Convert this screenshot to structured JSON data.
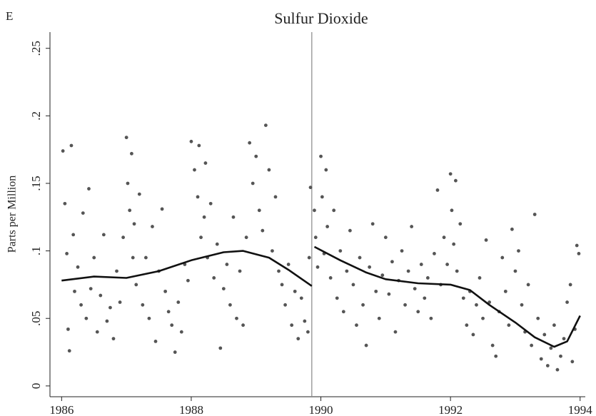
{
  "chart_data": {
    "type": "scatter",
    "panel_label": "E",
    "title": "Sulfur Dioxide",
    "y_label": "Parts per Million",
    "xlim": [
      1985.82,
      1994.08
    ],
    "xticks": [
      1986,
      1988,
      1990,
      1992,
      1994
    ],
    "ylim": [
      -0.008,
      0.262
    ],
    "yticks": [
      0,
      {
        "value": 0.05,
        "label": ".05"
      },
      {
        "value": 0.1,
        "label": ".1"
      },
      {
        "value": 0.15,
        "label": ".15"
      },
      {
        "value": 0.2,
        "label": ".2"
      },
      {
        "value": 0.25,
        "label": ".25"
      }
    ],
    "vline": 1989.86,
    "color": "#555555",
    "fit_color": "#111111",
    "x": [
      1986.02,
      1986.05,
      1986.08,
      1986.1,
      1986.12,
      1986.15,
      1986.18,
      1986.2,
      1986.25,
      1986.3,
      1986.33,
      1986.38,
      1986.42,
      1986.45,
      1986.5,
      1986.55,
      1986.6,
      1986.65,
      1986.7,
      1986.75,
      1986.8,
      1986.85,
      1986.9,
      1986.95,
      1987.0,
      1987.02,
      1987.05,
      1987.08,
      1987.1,
      1987.12,
      1987.15,
      1987.2,
      1987.25,
      1987.3,
      1987.35,
      1987.4,
      1987.45,
      1987.5,
      1987.55,
      1987.6,
      1987.65,
      1987.7,
      1987.75,
      1987.8,
      1987.85,
      1987.9,
      1987.95,
      1988.0,
      1988.05,
      1988.1,
      1988.12,
      1988.15,
      1988.2,
      1988.22,
      1988.25,
      1988.3,
      1988.35,
      1988.4,
      1988.45,
      1988.5,
      1988.55,
      1988.6,
      1988.65,
      1988.7,
      1988.75,
      1988.8,
      1988.85,
      1988.9,
      1988.95,
      1989.0,
      1989.05,
      1989.1,
      1989.15,
      1989.2,
      1989.25,
      1989.3,
      1989.35,
      1989.4,
      1989.45,
      1989.5,
      1989.55,
      1989.6,
      1989.65,
      1989.7,
      1989.75,
      1989.8,
      1989.82,
      1989.84,
      1989.9,
      1989.92,
      1989.95,
      1990.0,
      1990.02,
      1990.05,
      1990.08,
      1990.1,
      1990.15,
      1990.2,
      1990.25,
      1990.3,
      1990.35,
      1990.4,
      1990.45,
      1990.5,
      1990.55,
      1990.6,
      1990.65,
      1990.7,
      1990.75,
      1990.8,
      1990.85,
      1990.9,
      1990.95,
      1991.0,
      1991.05,
      1991.1,
      1991.15,
      1991.2,
      1991.25,
      1991.3,
      1991.35,
      1991.4,
      1991.45,
      1991.5,
      1991.55,
      1991.6,
      1991.65,
      1991.7,
      1991.75,
      1991.8,
      1991.85,
      1991.9,
      1991.95,
      1992.0,
      1992.02,
      1992.05,
      1992.08,
      1992.1,
      1992.15,
      1992.2,
      1992.25,
      1992.3,
      1992.35,
      1992.4,
      1992.45,
      1992.5,
      1992.55,
      1992.6,
      1992.65,
      1992.7,
      1992.75,
      1992.8,
      1992.85,
      1992.9,
      1992.95,
      1993.0,
      1993.05,
      1993.1,
      1993.15,
      1993.2,
      1993.25,
      1993.3,
      1993.35,
      1993.4,
      1993.45,
      1993.5,
      1993.55,
      1993.6,
      1993.65,
      1993.7,
      1993.75,
      1993.8,
      1993.85,
      1993.88,
      1993.92,
      1993.95,
      1993.98
    ],
    "y": [
      0.174,
      0.135,
      0.098,
      0.042,
      0.026,
      0.178,
      0.112,
      0.07,
      0.088,
      0.06,
      0.128,
      0.05,
      0.146,
      0.072,
      0.095,
      0.04,
      0.067,
      0.112,
      0.048,
      0.058,
      0.035,
      0.085,
      0.062,
      0.11,
      0.184,
      0.15,
      0.13,
      0.172,
      0.095,
      0.12,
      0.075,
      0.142,
      0.06,
      0.095,
      0.05,
      0.118,
      0.033,
      0.085,
      0.131,
      0.07,
      0.055,
      0.045,
      0.025,
      0.062,
      0.04,
      0.09,
      0.078,
      0.181,
      0.16,
      0.14,
      0.178,
      0.11,
      0.125,
      0.165,
      0.095,
      0.135,
      0.08,
      0.105,
      0.028,
      0.072,
      0.09,
      0.06,
      0.125,
      0.05,
      0.085,
      0.045,
      0.11,
      0.18,
      0.15,
      0.17,
      0.13,
      0.115,
      0.193,
      0.16,
      0.1,
      0.14,
      0.085,
      0.075,
      0.06,
      0.09,
      0.045,
      0.07,
      0.035,
      0.065,
      0.048,
      0.04,
      0.095,
      0.147,
      0.13,
      0.11,
      0.088,
      0.17,
      0.14,
      0.098,
      0.16,
      0.118,
      0.08,
      0.13,
      0.065,
      0.1,
      0.055,
      0.085,
      0.115,
      0.075,
      0.045,
      0.095,
      0.06,
      0.03,
      0.088,
      0.12,
      0.07,
      0.05,
      0.082,
      0.11,
      0.068,
      0.092,
      0.04,
      0.078,
      0.1,
      0.06,
      0.085,
      0.118,
      0.072,
      0.055,
      0.09,
      0.065,
      0.08,
      0.05,
      0.098,
      0.145,
      0.075,
      0.11,
      0.09,
      0.157,
      0.13,
      0.105,
      0.152,
      0.085,
      0.12,
      0.065,
      0.045,
      0.07,
      0.038,
      0.06,
      0.08,
      0.05,
      0.108,
      0.062,
      0.03,
      0.022,
      0.055,
      0.095,
      0.07,
      0.045,
      0.116,
      0.085,
      0.1,
      0.06,
      0.04,
      0.075,
      0.03,
      0.127,
      0.05,
      0.02,
      0.038,
      0.015,
      0.028,
      0.045,
      0.012,
      0.022,
      0.035,
      0.062,
      0.075,
      0.018,
      0.042,
      0.104,
      0.098
    ],
    "fits": [
      {
        "x": [
          1986.0,
          1986.5,
          1987.0,
          1987.5,
          1988.0,
          1988.5,
          1988.8,
          1989.2,
          1989.5,
          1989.86
        ],
        "y": [
          0.078,
          0.081,
          0.08,
          0.085,
          0.093,
          0.099,
          0.1,
          0.095,
          0.086,
          0.074
        ]
      },
      {
        "x": [
          1989.9,
          1990.3,
          1990.7,
          1991.0,
          1991.5,
          1992.0,
          1992.3,
          1992.6,
          1993.0,
          1993.3,
          1993.6,
          1993.8,
          1994.0
        ],
        "y": [
          0.103,
          0.093,
          0.084,
          0.079,
          0.076,
          0.075,
          0.071,
          0.06,
          0.047,
          0.036,
          0.029,
          0.033,
          0.052
        ]
      }
    ]
  }
}
